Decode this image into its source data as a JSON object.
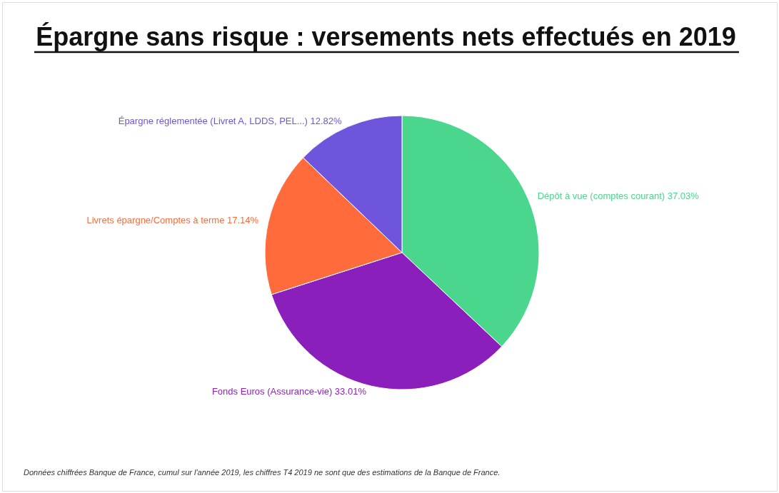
{
  "chart_data": {
    "type": "pie",
    "title": "Épargne sans risque : versements nets effectués en 2019",
    "categories": [
      "Dépôt à vue (comptes courant)",
      "Fonds Euros (Assurance-vie)",
      "Livrets épargne/Comptes à terme",
      "Épargne réglementée (Livret A, LDDS, PEL...)"
    ],
    "values": [
      37.03,
      33.01,
      17.14,
      12.82
    ],
    "value_labels": [
      "37.03%",
      "33.01%",
      "17.14%",
      "12.82%"
    ],
    "colors": [
      "#4ad68c",
      "#8b1fbb",
      "#ff6b3a",
      "#6f55dc"
    ],
    "annotations": [
      "Données chiffrées Banque de France, cumul sur l'année 2019, les chiffres T4 2019 ne sont que des estimations de la Banque de France."
    ]
  }
}
